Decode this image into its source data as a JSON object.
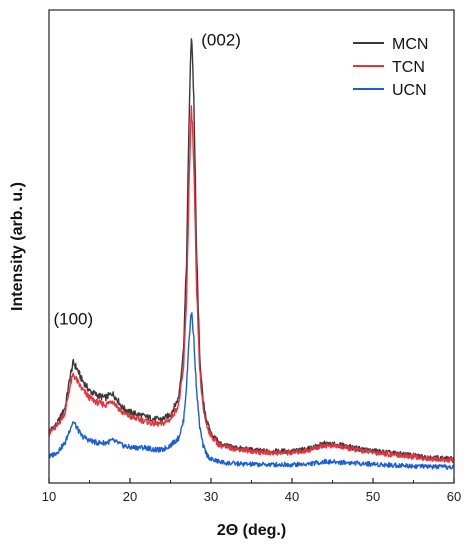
{
  "chart_data": {
    "type": "line",
    "title": "",
    "xlabel": "2Θ (deg.)",
    "ylabel": "Intensity (arb. u.)",
    "xlim": [
      10,
      60
    ],
    "ylim": [
      0,
      100
    ],
    "x_ticks": [
      10,
      20,
      30,
      40,
      50,
      60
    ],
    "x_tick_labels": [
      "10",
      "20",
      "30",
      "40",
      "50",
      "60"
    ],
    "y_ticks_shown": false,
    "grid": false,
    "legend_position": "top-right",
    "annotations": [
      {
        "text": "(100)",
        "x": 13.0,
        "y": 33.5
      },
      {
        "text": "(002)",
        "x": 28.8,
        "y": 92.5
      }
    ],
    "series": [
      {
        "name": "MCN",
        "color": "#3a3a3a",
        "x": [
          10,
          11,
          12,
          12.6,
          13.0,
          13.5,
          14,
          15,
          16,
          17,
          17.8,
          18.5,
          19,
          20,
          21,
          22,
          23,
          24,
          25,
          26,
          26.6,
          27.0,
          27.3,
          27.6,
          27.9,
          28.2,
          28.6,
          29,
          29.5,
          30,
          31,
          32,
          34,
          36,
          38,
          40,
          42,
          44,
          46,
          48,
          50,
          52,
          54,
          56,
          58,
          60
        ],
        "y": [
          11,
          12.5,
          16,
          22.5,
          25.5,
          24,
          22,
          19.5,
          18.5,
          18,
          19,
          17.5,
          16,
          15,
          14.5,
          14,
          13.5,
          13.5,
          14.5,
          18,
          28,
          48,
          78,
          96,
          80,
          50,
          27,
          17.5,
          13,
          10.5,
          8.5,
          7.8,
          7.2,
          6.8,
          6.7,
          6.7,
          7.2,
          8.3,
          8,
          7.3,
          6.8,
          6.4,
          6,
          5.6,
          5.3,
          5
        ]
      },
      {
        "name": "TCN",
        "color": "#e8323c",
        "x": [
          10,
          11,
          12,
          12.6,
          13.0,
          13.5,
          14,
          15,
          16,
          17,
          17.8,
          18.5,
          19,
          20,
          21,
          22,
          23,
          24,
          25,
          26,
          26.6,
          27.0,
          27.3,
          27.6,
          27.9,
          28.2,
          28.6,
          29,
          29.5,
          30,
          31,
          32,
          34,
          36,
          38,
          40,
          42,
          44,
          46,
          48,
          50,
          52,
          54,
          56,
          58,
          60
        ],
        "y": [
          10.5,
          12,
          15,
          20.5,
          23,
          21.5,
          20,
          18,
          17,
          16.5,
          17.5,
          16,
          15,
          14,
          13.5,
          13,
          12.5,
          12.5,
          13.5,
          16.5,
          24,
          40,
          64,
          80,
          66,
          42,
          24,
          16,
          12,
          10,
          8,
          7.5,
          7,
          6.5,
          6.4,
          6.4,
          6.9,
          8,
          7.7,
          7,
          6.5,
          6.1,
          5.7,
          5.3,
          5,
          4.8
        ]
      },
      {
        "name": "UCN",
        "color": "#1a5fd6",
        "x": [
          10,
          11,
          12,
          12.6,
          13.0,
          13.5,
          14,
          15,
          16,
          17,
          17.8,
          18.5,
          19,
          20,
          21,
          22,
          23,
          24,
          25,
          26,
          26.6,
          27.0,
          27.3,
          27.6,
          27.9,
          28.2,
          28.6,
          29,
          29.5,
          30,
          31,
          32,
          34,
          36,
          38,
          40,
          42,
          44,
          46,
          48,
          50,
          52,
          54,
          56,
          58,
          60
        ],
        "y": [
          5.5,
          6.5,
          8.5,
          11.5,
          13,
          11.5,
          10,
          9,
          8.5,
          8.5,
          9,
          8.5,
          8,
          7.5,
          7.5,
          7.5,
          7,
          7,
          8,
          9.5,
          13,
          21,
          31,
          36.5,
          30,
          20,
          12,
          8,
          6,
          5,
          4.5,
          4.2,
          4,
          3.9,
          3.9,
          3.9,
          4,
          4.5,
          4.4,
          4.2,
          4,
          3.8,
          3.7,
          3.5,
          3.4,
          3.3
        ]
      }
    ]
  }
}
